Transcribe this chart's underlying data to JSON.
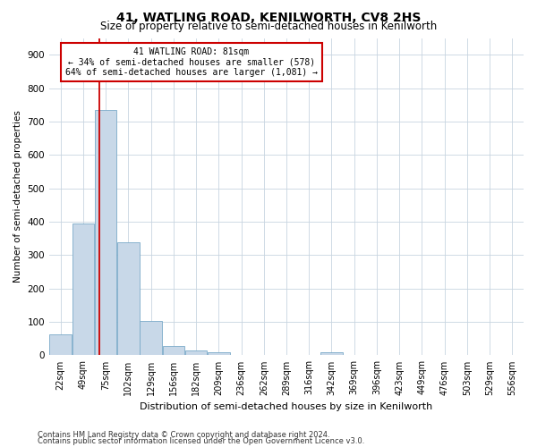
{
  "title": "41, WATLING ROAD, KENILWORTH, CV8 2HS",
  "subtitle": "Size of property relative to semi-detached houses in Kenilworth",
  "xlabel": "Distribution of semi-detached houses by size in Kenilworth",
  "ylabel": "Number of semi-detached properties",
  "footnote1": "Contains HM Land Registry data © Crown copyright and database right 2024.",
  "footnote2": "Contains public sector information licensed under the Open Government Licence v3.0.",
  "bar_labels": [
    "22sqm",
    "49sqm",
    "75sqm",
    "102sqm",
    "129sqm",
    "156sqm",
    "182sqm",
    "209sqm",
    "236sqm",
    "262sqm",
    "289sqm",
    "316sqm",
    "342sqm",
    "369sqm",
    "396sqm",
    "423sqm",
    "449sqm",
    "476sqm",
    "503sqm",
    "529sqm",
    "556sqm"
  ],
  "bar_values": [
    62,
    395,
    735,
    338,
    104,
    27,
    15,
    9,
    0,
    0,
    0,
    0,
    10,
    0,
    0,
    0,
    0,
    0,
    0,
    0,
    0
  ],
  "bar_color": "#c8d8e8",
  "bar_edge_color": "#7aaac8",
  "grid_color": "#c8d4e0",
  "property_sqm": 81,
  "pct_smaller": 34,
  "pct_larger": 64,
  "n_smaller": 578,
  "n_larger": 1081,
  "red_line_color": "#cc0000",
  "annotation_box_color": "#cc0000",
  "ylim": [
    0,
    950
  ],
  "yticks": [
    0,
    100,
    200,
    300,
    400,
    500,
    600,
    700,
    800,
    900
  ],
  "title_fontsize": 10,
  "subtitle_fontsize": 8.5,
  "n_bars": 21
}
